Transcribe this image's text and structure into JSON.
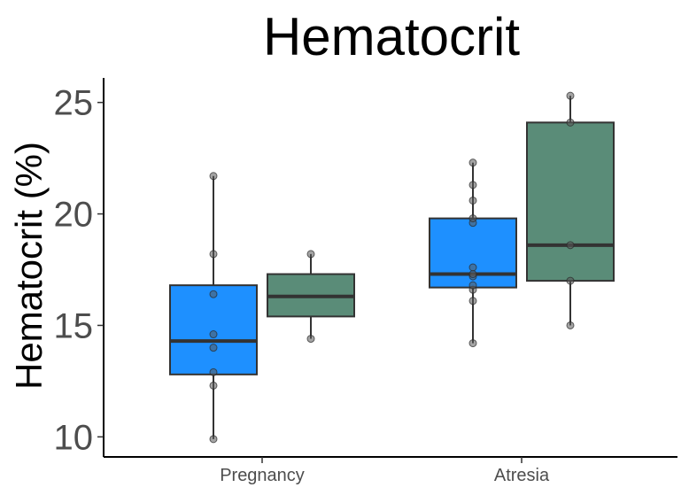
{
  "chart_data": {
    "type": "boxplot",
    "title": "Hematocrit",
    "xlabel": "",
    "ylabel": "Hematocrit (%)",
    "categories": [
      "Pregnancy",
      "Atresia"
    ],
    "ylim": [
      9.1,
      26.1
    ],
    "yticks": [
      10,
      15,
      20,
      25
    ],
    "grid": false,
    "legend": "none",
    "box_colors": [
      "#1e90ff",
      "#5a8c78"
    ],
    "groups": [
      {
        "category": "Pregnancy",
        "boxes": [
          {
            "color": "#1e90ff",
            "min": 9.9,
            "q1": 12.8,
            "median": 14.3,
            "q3": 16.8,
            "max": 21.7,
            "points": [
              9.9,
              12.3,
              12.9,
              14.0,
              14.6,
              16.4,
              18.2,
              21.7
            ]
          },
          {
            "color": "#5a8c78",
            "min": 14.4,
            "q1": 15.4,
            "median": 16.3,
            "q3": 17.3,
            "max": 18.2,
            "points": [
              14.4,
              18.2
            ]
          }
        ]
      },
      {
        "category": "Atresia",
        "boxes": [
          {
            "color": "#1e90ff",
            "min": 14.2,
            "q1": 16.7,
            "median": 17.3,
            "q3": 19.8,
            "max": 22.3,
            "points": [
              14.2,
              16.1,
              16.6,
              16.8,
              17.2,
              17.3,
              17.6,
              19.6,
              19.8,
              20.6,
              21.3,
              22.3
            ]
          },
          {
            "color": "#5a8c78",
            "min": 15.0,
            "q1": 17.0,
            "median": 18.6,
            "q3": 24.1,
            "max": 25.3,
            "points": [
              15.0,
              17.0,
              18.6,
              24.1,
              25.3
            ]
          }
        ]
      }
    ]
  }
}
